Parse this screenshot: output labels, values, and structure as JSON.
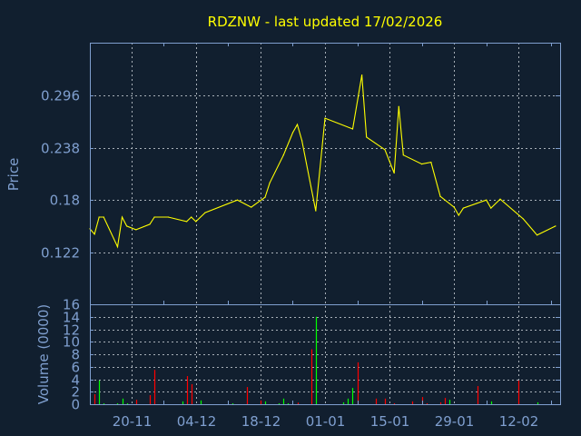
{
  "chart_data": [
    {
      "type": "line",
      "title": "RDZNW - last updated 17/02/2026",
      "ylabel": "Price",
      "ylim": [
        0.064,
        0.355
      ],
      "xlim": [
        "2025-11-11",
        "2026-02-21"
      ],
      "grid": true,
      "line_color": "#ffff00",
      "yticks": [
        "0.122",
        "0.18",
        "0.238",
        "0.296"
      ],
      "x": [
        "2025-11-11",
        "2025-11-12",
        "2025-11-13",
        "2025-11-14",
        "2025-11-17",
        "2025-11-18",
        "2025-11-19",
        "2025-11-21",
        "2025-11-24",
        "2025-11-25",
        "2025-11-28",
        "2025-12-02",
        "2025-12-03",
        "2025-12-04",
        "2025-12-06",
        "2025-12-13",
        "2025-12-16",
        "2025-12-19",
        "2025-12-20",
        "2025-12-23",
        "2025-12-25",
        "2025-12-26",
        "2025-12-27",
        "2025-12-30",
        "2026-01-01",
        "2026-01-07",
        "2026-01-09",
        "2026-01-10",
        "2026-01-14",
        "2026-01-16",
        "2026-01-17",
        "2026-01-18",
        "2026-01-22",
        "2026-01-24",
        "2026-01-26",
        "2026-01-29",
        "2026-01-30",
        "2026-01-31",
        "2026-02-05",
        "2026-02-06",
        "2026-02-08",
        "2026-02-13",
        "2026-02-16",
        "2026-02-20"
      ],
      "values": [
        0.148,
        0.142,
        0.161,
        0.161,
        0.128,
        0.161,
        0.151,
        0.147,
        0.153,
        0.161,
        0.161,
        0.156,
        0.161,
        0.156,
        0.166,
        0.18,
        0.172,
        0.183,
        0.199,
        0.23,
        0.255,
        0.264,
        0.246,
        0.168,
        0.271,
        0.259,
        0.319,
        0.25,
        0.236,
        0.21,
        0.284,
        0.23,
        0.22,
        0.222,
        0.184,
        0.172,
        0.163,
        0.171,
        0.18,
        0.171,
        0.181,
        0.159,
        0.141,
        0.151
      ]
    },
    {
      "type": "bar",
      "ylabel": "Volume (0000)",
      "ylim": [
        0,
        16
      ],
      "xlim": [
        "2025-11-11",
        "2026-02-21"
      ],
      "grid": true,
      "colors": {
        "up": "#00ff00",
        "down": "#ff0000"
      },
      "yticks": [
        "0",
        "2",
        "4",
        "6",
        "8",
        "10",
        "12",
        "14",
        "16"
      ],
      "xticks": [
        {
          "date": "2025-11-20",
          "label": "20-11"
        },
        {
          "date": "2025-12-04",
          "label": "04-12"
        },
        {
          "date": "2025-12-18",
          "label": "18-12"
        },
        {
          "date": "2026-01-01",
          "label": "01-01"
        },
        {
          "date": "2026-01-15",
          "label": "15-01"
        },
        {
          "date": "2026-01-29",
          "label": "29-01"
        },
        {
          "date": "2026-02-12",
          "label": "12-02"
        }
      ],
      "bars": [
        {
          "date": "2025-11-12",
          "value": 1.6,
          "dir": "down"
        },
        {
          "date": "2025-11-13",
          "value": 3.8,
          "dir": "up"
        },
        {
          "date": "2025-11-14",
          "value": 0.15,
          "dir": "up"
        },
        {
          "date": "2025-11-17",
          "value": 0.15,
          "dir": "up"
        },
        {
          "date": "2025-11-18",
          "value": 0.9,
          "dir": "up"
        },
        {
          "date": "2025-11-19",
          "value": 0.15,
          "dir": "up"
        },
        {
          "date": "2025-11-21",
          "value": 0.7,
          "dir": "down"
        },
        {
          "date": "2025-11-24",
          "value": 1.45,
          "dir": "down"
        },
        {
          "date": "2025-11-25",
          "value": 5.5,
          "dir": "down"
        },
        {
          "date": "2025-12-01",
          "value": 0.45,
          "dir": "up"
        },
        {
          "date": "2025-12-02",
          "value": 4.5,
          "dir": "down"
        },
        {
          "date": "2025-12-03",
          "value": 3.2,
          "dir": "down"
        },
        {
          "date": "2025-12-05",
          "value": 0.6,
          "dir": "up"
        },
        {
          "date": "2025-12-12",
          "value": 0.15,
          "dir": "up"
        },
        {
          "date": "2025-12-15",
          "value": 2.75,
          "dir": "down"
        },
        {
          "date": "2025-12-18",
          "value": 0.6,
          "dir": "down"
        },
        {
          "date": "2025-12-19",
          "value": 0.45,
          "dir": "up"
        },
        {
          "date": "2025-12-22",
          "value": 0.15,
          "dir": "up"
        },
        {
          "date": "2025-12-23",
          "value": 0.9,
          "dir": "up"
        },
        {
          "date": "2025-12-24",
          "value": 0.15,
          "dir": "up"
        },
        {
          "date": "2025-12-26",
          "value": 0.25,
          "dir": "down"
        },
        {
          "date": "2025-12-29",
          "value": 8.8,
          "dir": "down"
        },
        {
          "date": "2025-12-30",
          "value": 14.0,
          "dir": "up"
        },
        {
          "date": "2026-01-05",
          "value": 0.3,
          "dir": "up"
        },
        {
          "date": "2026-01-06",
          "value": 0.9,
          "dir": "up"
        },
        {
          "date": "2026-01-07",
          "value": 2.6,
          "dir": "up"
        },
        {
          "date": "2026-01-08",
          "value": 6.7,
          "dir": "down"
        },
        {
          "date": "2026-01-12",
          "value": 0.9,
          "dir": "down"
        },
        {
          "date": "2026-01-14",
          "value": 0.9,
          "dir": "down"
        },
        {
          "date": "2026-01-16",
          "value": 0.15,
          "dir": "down"
        },
        {
          "date": "2026-01-20",
          "value": 0.45,
          "dir": "down"
        },
        {
          "date": "2026-01-22",
          "value": 1.15,
          "dir": "down"
        },
        {
          "date": "2026-01-23",
          "value": 0.15,
          "dir": "down"
        },
        {
          "date": "2026-01-26",
          "value": 0.3,
          "dir": "down"
        },
        {
          "date": "2026-01-27",
          "value": 1.0,
          "dir": "down"
        },
        {
          "date": "2026-01-28",
          "value": 0.7,
          "dir": "up"
        },
        {
          "date": "2026-02-03",
          "value": 2.9,
          "dir": "down"
        },
        {
          "date": "2026-02-06",
          "value": 0.45,
          "dir": "up"
        },
        {
          "date": "2026-02-12",
          "value": 3.8,
          "dir": "down"
        },
        {
          "date": "2026-02-16",
          "value": 0.3,
          "dir": "up"
        }
      ]
    }
  ]
}
